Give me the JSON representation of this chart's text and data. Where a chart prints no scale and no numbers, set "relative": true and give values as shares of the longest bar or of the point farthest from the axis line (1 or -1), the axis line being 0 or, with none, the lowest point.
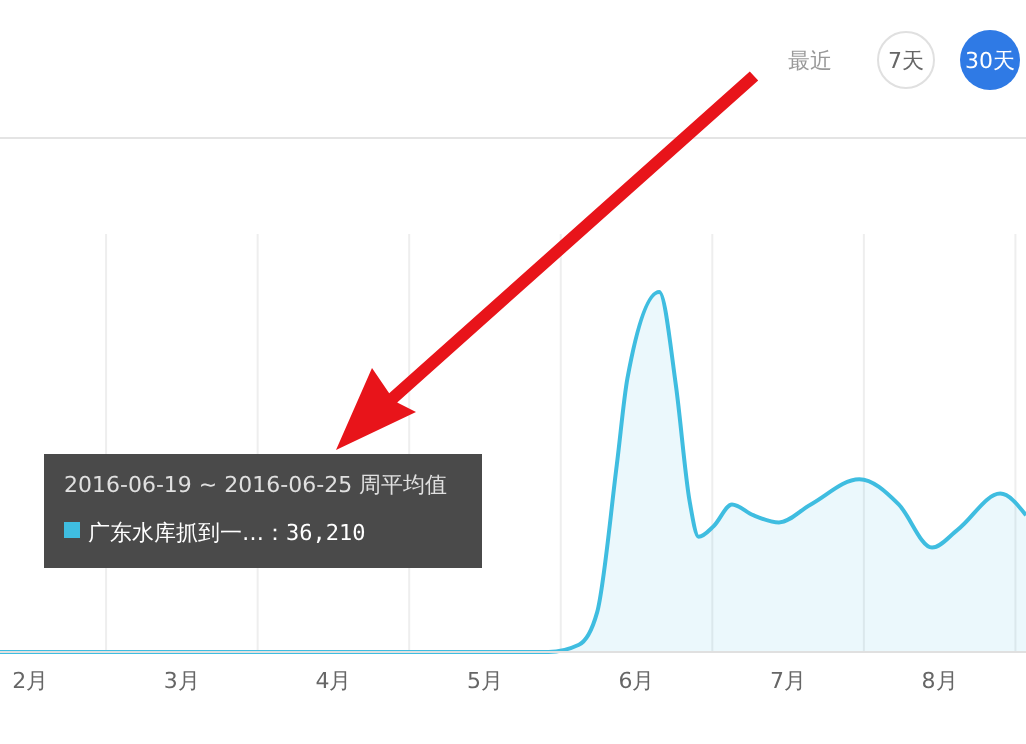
{
  "chart_data": {
    "type": "area",
    "relative": true,
    "x": [
      2.3,
      5.92,
      6.12,
      6.24,
      6.37,
      6.44,
      6.65,
      6.76,
      6.85,
      6.91,
      7.01,
      7.13,
      7.27,
      7.44,
      7.65,
      7.97,
      8.23,
      8.45,
      8.62,
      8.9,
      9.07
    ],
    "series": [
      {
        "name": "广东水库抓到一…",
        "color": "#3fbde0",
        "values": [
          0,
          0,
          0.02,
          0.11,
          0.52,
          0.76,
          1,
          0.74,
          0.42,
          0.32,
          0.35,
          0.41,
          0.38,
          0.36,
          0.41,
          0.48,
          0.41,
          0.29,
          0.34,
          0.44,
          0.38
        ]
      }
    ],
    "xlim": [
      2.3,
      9.07
    ],
    "xticks": [
      {
        "value": 2.5,
        "label": "2月"
      },
      {
        "value": 3,
        "label": null
      },
      {
        "value": 3.5,
        "label": "3月"
      },
      {
        "value": 4,
        "label": null
      },
      {
        "value": 4.5,
        "label": "4月"
      },
      {
        "value": 5,
        "label": null
      },
      {
        "value": 5.5,
        "label": "5月"
      },
      {
        "value": 6,
        "label": null
      },
      {
        "value": 6.5,
        "label": "6月"
      },
      {
        "value": 7,
        "label": null
      },
      {
        "value": 7.5,
        "label": "7月"
      },
      {
        "value": 8,
        "label": null
      },
      {
        "value": 8.5,
        "label": "8月"
      },
      {
        "value": 9,
        "label": null
      }
    ],
    "grid": "x",
    "legend": "left",
    "annotations": [
      "2016-06-19 ~ 2016-06-25 周平均值",
      "：36,210",
      "最近",
      "7天",
      "30天"
    ]
  }
}
